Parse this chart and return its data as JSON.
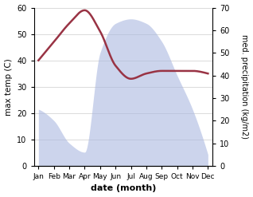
{
  "months": [
    "Jan",
    "Feb",
    "Mar",
    "Apr",
    "May",
    "Jun",
    "Jul",
    "Aug",
    "Sep",
    "Oct",
    "Nov",
    "Dec"
  ],
  "temperature": [
    40,
    47,
    54,
    59,
    51,
    38,
    33,
    35,
    36,
    36,
    36,
    35
  ],
  "precipitation": [
    25,
    20,
    10,
    6,
    50,
    63,
    65,
    63,
    55,
    40,
    25,
    5
  ],
  "temp_color": "#993344",
  "precip_fill_color": "#aab8e0",
  "precip_fill_alpha": 0.6,
  "temp_ylim": [
    0,
    60
  ],
  "precip_ylim": [
    0,
    70
  ],
  "temp_yticks": [
    0,
    10,
    20,
    30,
    40,
    50,
    60
  ],
  "precip_yticks": [
    0,
    10,
    20,
    30,
    40,
    50,
    60,
    70
  ],
  "ylabel_left": "max temp (C)",
  "ylabel_right": "med. precipitation (kg/m2)",
  "xlabel": "date (month)",
  "bg_color": "#ffffff",
  "grid_color": "#cccccc",
  "title": ""
}
